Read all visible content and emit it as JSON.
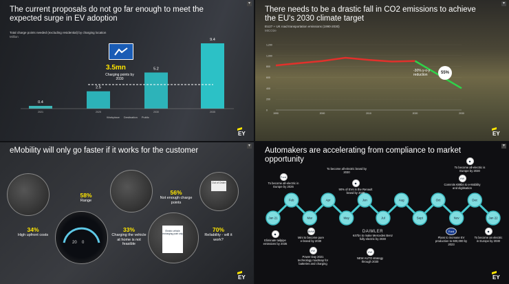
{
  "q1": {
    "title": "The current proposals do not go far enough to meet the expected surge in EV adoption",
    "subtitle": "Total charge points needed (excluding residential) by charging location",
    "unit": "Million",
    "callout_value": "3.5mn",
    "callout_label": "Charging points by 2030",
    "legend": [
      "Workplace",
      "Destination",
      "Public"
    ],
    "ey": "EY"
  },
  "q2": {
    "title": "There needs to be a drastic fall in CO2 emissions to achieve the EU's 2030 climate target",
    "subtitle": "EU27 + UK road transportation emissions (1990-2030)",
    "unit": "MtCO2e",
    "annotation": "-30% y-o-y reduction",
    "badge": "55%",
    "ey": "EY"
  },
  "q3": {
    "title": "eMobility will only go faster if it works for the customer",
    "stats": [
      {
        "value": "58%",
        "label": "Range"
      },
      {
        "value": "56%",
        "label": "Not enough charge points"
      },
      {
        "value": "34%",
        "label": "High upfront costs"
      },
      {
        "value": "33%",
        "label": "Charging the vehicle at home is not feasible"
      },
      {
        "value": "70%",
        "label": "Reliability - will it work?"
      }
    ],
    "sign_text": "Out of Order",
    "parking_sign": "Electric vehicle recharging point only",
    "ey": "EY"
  },
  "q4": {
    "title": "Automakers are accelerating from compliance to market opportunity",
    "months": [
      "Jan 21",
      "Feb",
      "Mar",
      "Apr",
      "May",
      "Jun",
      "Jul",
      "Aug",
      "Sept",
      "Oct",
      "Nov",
      "Dec",
      "Jan 22"
    ],
    "brands_top": [
      {
        "logo": "Ford",
        "text": "To become all-electric in Europe by 2026"
      },
      {
        "logo": "",
        "text": "To become all-electric brand by 2030"
      },
      {
        "logo": "",
        "text": "90% of EVs in the Renault brand by 2030"
      },
      {
        "logo": "",
        "text": "To become all-electric is Europe by 2030"
      },
      {
        "logo": "VW",
        "text": "Commits €89bn to e-Mobility and digitisation"
      }
    ],
    "brands_bottom": [
      {
        "logo": "",
        "text": "Eliminate tailpipe emissions by 2035"
      },
      {
        "logo": "BMW",
        "text": "Mini to become pure e-brand by 2030"
      },
      {
        "logo": "VW",
        "text": "Power Day 2021 technology roadmap for batteries and charging"
      },
      {
        "logo": "DAIMLER",
        "text": "€47bn to make Mercedes Benz fully electric by 2030"
      },
      {
        "logo": "VW",
        "text": "NEW AUTO strategy through 2030"
      },
      {
        "logo": "Ford",
        "text": "Plans to increase EV production to 600,000 by 2023"
      },
      {
        "logo": "",
        "text": "To become an electric in Europe by 2030"
      }
    ],
    "ey": "EY"
  },
  "chart_data": [
    {
      "type": "bar",
      "title": "Total charge points needed (excluding residential) by charging location",
      "ylabel": "Million",
      "categories": [
        "2021",
        "2025",
        "2030",
        "2035"
      ],
      "values": [
        0.4,
        2.5,
        5.2,
        9.4
      ],
      "series": [
        {
          "name": "Workplace"
        },
        {
          "name": "Destination"
        },
        {
          "name": "Public"
        }
      ]
    },
    {
      "type": "line",
      "title": "EU27 + UK road transportation emissions (1990-2030)",
      "ylabel": "MtCO2e",
      "ylim": [
        0,
        1200
      ],
      "x": [
        1990,
        1995,
        2000,
        2005,
        2010,
        2015,
        2020,
        2025,
        2030
      ],
      "values": [
        820,
        860,
        900,
        960,
        920,
        890,
        900,
        650,
        400
      ]
    }
  ]
}
